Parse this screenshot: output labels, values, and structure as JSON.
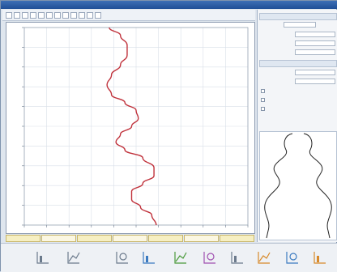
{
  "window": {
    "title": "",
    "accent": "#2a5aa0"
  },
  "toolbar": {
    "buttons": [
      "zoom-in-icon",
      "zoom-out-icon",
      "pan-icon",
      "fit-icon",
      "grid-icon",
      "ruler-icon",
      "print-icon",
      "copy-icon",
      "export-icon",
      "settings-icon",
      "help-icon",
      "close-icon"
    ]
  },
  "chart_data": {
    "type": "line",
    "title": "",
    "xlabel": "",
    "ylabel": "",
    "grid": true,
    "xlim": [
      0,
      10
    ],
    "ylim": [
      0,
      10
    ],
    "series": [
      {
        "color": "#c0323c",
        "x": [
          3.8,
          4.3,
          4.6,
          4.6,
          4.3,
          3.9,
          3.7,
          3.9,
          4.5,
          5.0,
          5.1,
          4.8,
          4.3,
          4.1,
          4.5,
          5.3,
          5.8,
          5.8,
          5.3,
          4.8,
          4.8,
          5.2,
          5.7,
          5.9
        ],
        "y": [
          10.0,
          9.6,
          9.1,
          8.6,
          8.1,
          7.6,
          7.1,
          6.6,
          6.2,
          5.8,
          5.4,
          5.0,
          4.6,
          4.2,
          3.8,
          3.4,
          2.9,
          2.5,
          2.1,
          1.7,
          1.3,
          0.9,
          0.5,
          0.0
        ]
      }
    ]
  },
  "status_bar": {
    "cells": [
      "",
      "",
      "",
      "",
      "",
      "",
      ""
    ]
  },
  "side_panel": {
    "header": "",
    "header_value": "",
    "rows": [
      {
        "label": "",
        "value": ""
      },
      {
        "label": "",
        "value": ""
      },
      {
        "label": "",
        "value": ""
      }
    ],
    "section2_header": "",
    "rows2": [
      {
        "label": "",
        "value": ""
      },
      {
        "label": "",
        "value": ""
      }
    ],
    "checks": [
      "",
      "",
      ""
    ],
    "muted_checks": [
      "",
      "",
      ""
    ]
  },
  "bottom_toolbar": {
    "icons": [
      "axis-icon",
      "chart-axis-icon",
      "trend-icon",
      "bar-chart-icon",
      "layer-icon",
      "line-tool-icon",
      "grid-chart-icon",
      "marker-icon",
      "view-icon",
      "scale-icon"
    ],
    "colors": {
      "icon_stroke": "#6b7a8c",
      "icon_green": "#4a9a3a",
      "icon_orange": "#d88a2a",
      "icon_blue": "#3a7ac0",
      "icon_purple": "#a050b0"
    }
  },
  "preview": {
    "outline_color": "#222222"
  }
}
